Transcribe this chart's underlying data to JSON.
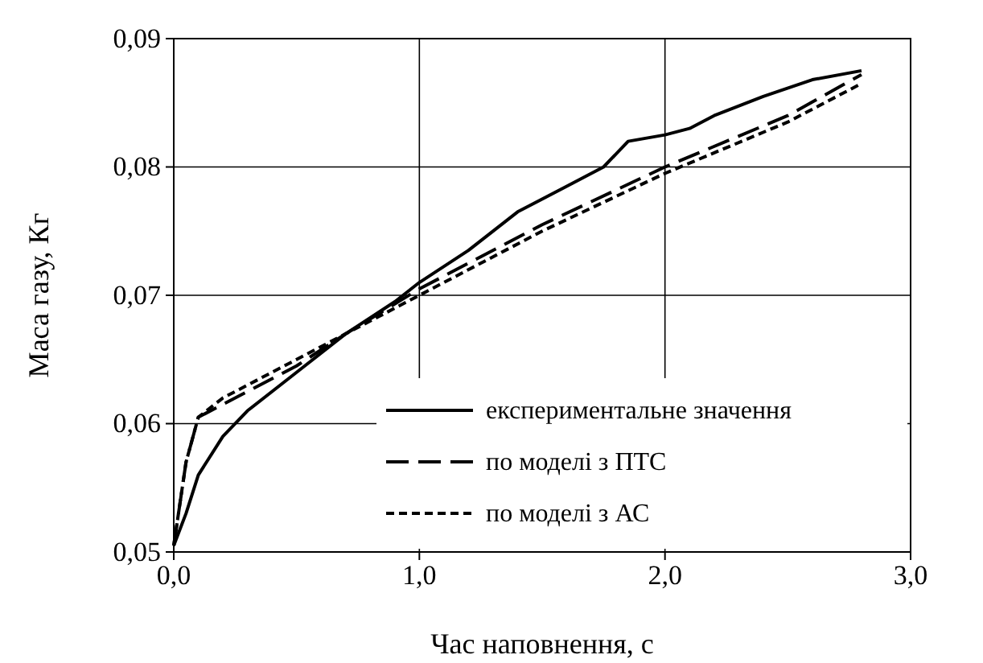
{
  "chart_data": {
    "type": "line",
    "xlabel": "Час наповнення, с",
    "ylabel": "Маса газу, Кг",
    "xlim": [
      0,
      3
    ],
    "xticks": [
      {
        "value": 0,
        "label": "0,0"
      },
      {
        "value": 1,
        "label": "1,0"
      },
      {
        "value": 2,
        "label": "2,0"
      },
      {
        "value": 3,
        "label": "3,0"
      }
    ],
    "ylim": [
      0.05,
      0.09
    ],
    "yticks": [
      {
        "value": 0.05,
        "label": "0,05"
      },
      {
        "value": 0.06,
        "label": "0,06"
      },
      {
        "value": 0.07,
        "label": "0,07"
      },
      {
        "value": 0.08,
        "label": "0,08"
      },
      {
        "value": 0.09,
        "label": "0,09"
      }
    ],
    "grid": true,
    "legend": "bottom right",
    "marker": "none",
    "series": [
      {
        "name": "експериментальне значення",
        "color": "#000000",
        "line_style": "solid",
        "x": [
          0,
          0.05,
          0.1,
          0.2,
          0.3,
          0.5,
          0.7,
          0.9,
          1.0,
          1.2,
          1.4,
          1.6,
          1.75,
          1.85,
          2.0,
          2.1,
          2.2,
          2.4,
          2.6,
          2.8
        ],
        "values": [
          0.0505,
          0.053,
          0.056,
          0.059,
          0.061,
          0.064,
          0.067,
          0.0695,
          0.071,
          0.0735,
          0.0765,
          0.0785,
          0.08,
          0.082,
          0.0825,
          0.083,
          0.084,
          0.0855,
          0.0868,
          0.0875
        ]
      },
      {
        "name": "по моделі з ПТС",
        "color": "#000000",
        "line_style": "dashed",
        "x": [
          0,
          0.05,
          0.1,
          0.2,
          0.5,
          0.7,
          1.0,
          1.5,
          2.0,
          2.5,
          2.8
        ],
        "values": [
          0.0505,
          0.057,
          0.0605,
          0.0615,
          0.0645,
          0.067,
          0.0705,
          0.0755,
          0.08,
          0.084,
          0.0872
        ]
      },
      {
        "name": "по моделі з АС",
        "color": "#000000",
        "line_style": "dotted",
        "x": [
          0,
          0.05,
          0.1,
          0.2,
          0.5,
          0.7,
          1.0,
          1.5,
          2.0,
          2.5,
          2.8
        ],
        "values": [
          0.0505,
          0.057,
          0.0605,
          0.062,
          0.065,
          0.067,
          0.07,
          0.075,
          0.0795,
          0.0835,
          0.0865
        ]
      }
    ]
  }
}
